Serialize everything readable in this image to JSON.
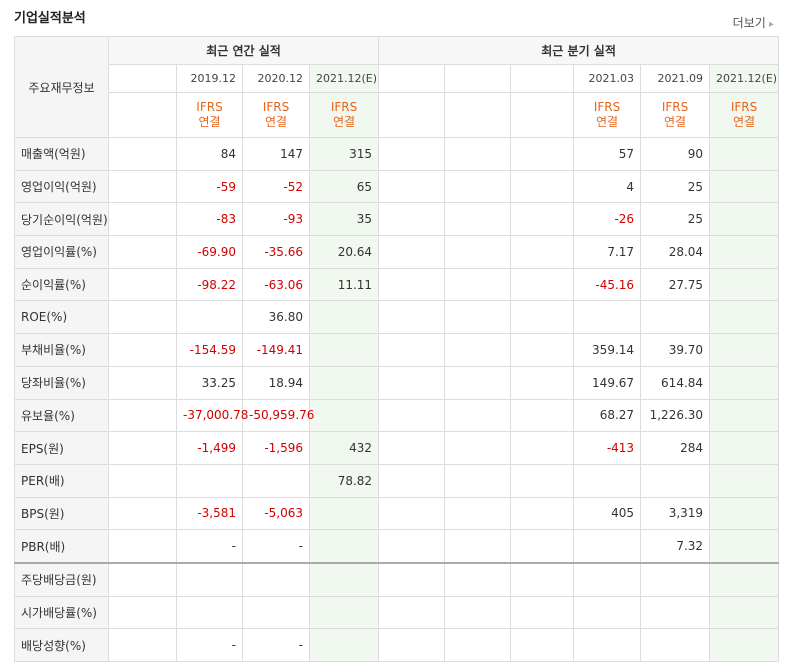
{
  "header": {
    "title": "기업실적분석",
    "more": "더보기"
  },
  "table": {
    "row_header": "주요재무정보",
    "sections": [
      {
        "title": "최근 연간 실적",
        "columns": [
          null,
          {
            "period": "2019.12",
            "standard": "IFRS",
            "scope": "연결"
          },
          {
            "period": "2020.12",
            "standard": "IFRS",
            "scope": "연결"
          },
          {
            "period": "2021.12(E)",
            "standard": "IFRS",
            "scope": "연결"
          }
        ]
      },
      {
        "title": "최근 분기 실적",
        "columns": [
          null,
          null,
          null,
          {
            "period": "2021.03",
            "standard": "IFRS",
            "scope": "연결"
          },
          {
            "period": "2021.09",
            "standard": "IFRS",
            "scope": "연결"
          },
          {
            "period": "2021.12(E)",
            "standard": "IFRS",
            "scope": "연결"
          }
        ]
      }
    ],
    "groups": [
      [
        {
          "label": "매출액(억원)",
          "values": [
            null,
            "84",
            "147",
            "315",
            null,
            null,
            null,
            "57",
            "90",
            null
          ]
        },
        {
          "label": "영업이익(억원)",
          "values": [
            null,
            "-59",
            "-52",
            "65",
            null,
            null,
            null,
            "4",
            "25",
            null
          ]
        },
        {
          "label": "당기순이익(억원)",
          "values": [
            null,
            "-83",
            "-93",
            "35",
            null,
            null,
            null,
            "-26",
            "25",
            null
          ]
        }
      ],
      [
        {
          "label": "영업이익률(%)",
          "values": [
            null,
            "-69.90",
            "-35.66",
            "20.64",
            null,
            null,
            null,
            "7.17",
            "28.04",
            null
          ]
        },
        {
          "label": "순이익률(%)",
          "values": [
            null,
            "-98.22",
            "-63.06",
            "11.11",
            null,
            null,
            null,
            "-45.16",
            "27.75",
            null
          ]
        },
        {
          "label": "ROE(%)",
          "values": [
            null,
            null,
            "36.80",
            null,
            null,
            null,
            null,
            null,
            null,
            null
          ]
        }
      ],
      [
        {
          "label": "부채비율(%)",
          "values": [
            null,
            "-154.59",
            "-149.41",
            null,
            null,
            null,
            null,
            "359.14",
            "39.70",
            null
          ]
        },
        {
          "label": "당좌비율(%)",
          "values": [
            null,
            "33.25",
            "18.94",
            null,
            null,
            null,
            null,
            "149.67",
            "614.84",
            null
          ]
        },
        {
          "label": "유보율(%)",
          "values": [
            null,
            "-37,000.78",
            "-50,959.76",
            null,
            null,
            null,
            null,
            "68.27",
            "1,226.30",
            null
          ]
        }
      ],
      [
        {
          "label": "EPS(원)",
          "values": [
            null,
            "-1,499",
            "-1,596",
            "432",
            null,
            null,
            null,
            "-413",
            "284",
            null
          ]
        },
        {
          "label": "PER(배)",
          "values": [
            null,
            null,
            null,
            "78.82",
            null,
            null,
            null,
            null,
            null,
            null
          ]
        },
        {
          "label": "BPS(원)",
          "values": [
            null,
            "-3,581",
            "-5,063",
            null,
            null,
            null,
            null,
            "405",
            "3,319",
            null
          ]
        },
        {
          "label": "PBR(배)",
          "values": [
            null,
            "-",
            "-",
            null,
            null,
            null,
            null,
            null,
            "7.32",
            null
          ]
        }
      ],
      [
        {
          "label": "주당배당금(원)",
          "values": [
            null,
            null,
            null,
            null,
            null,
            null,
            null,
            null,
            null,
            null
          ]
        },
        {
          "label": "시가배당률(%)",
          "values": [
            null,
            null,
            null,
            null,
            null,
            null,
            null,
            null,
            null,
            null
          ]
        },
        {
          "label": "배당성향(%)",
          "values": [
            null,
            "-",
            "-",
            null,
            null,
            null,
            null,
            null,
            null,
            null
          ]
        }
      ]
    ]
  }
}
